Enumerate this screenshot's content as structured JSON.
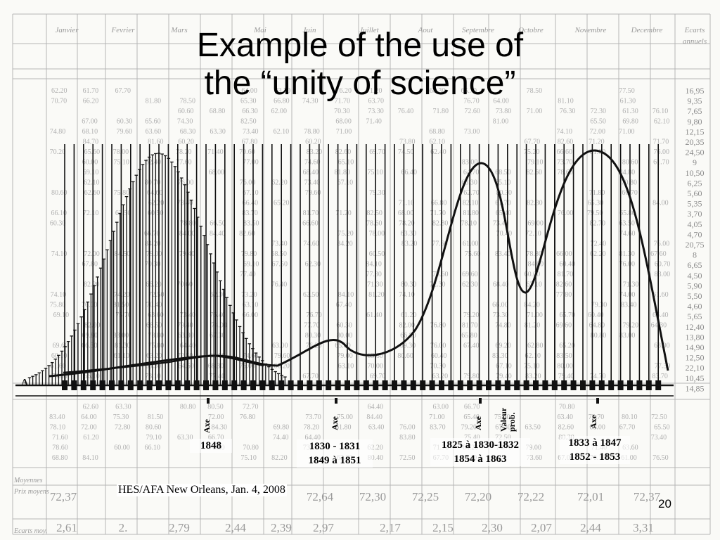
{
  "slide": {
    "title_line1": "Example of the use of",
    "title_line2": "the “unity of science”",
    "footer": "HES/AFA  New Orleans, Jan. 4, 2008",
    "page_number": "20"
  },
  "diagram": {
    "axis_start_label": "A",
    "annotations": [
      {
        "id": "a1848",
        "lines": [
          "1848"
        ],
        "axe": "Axe"
      },
      {
        "id": "a1830",
        "lines": [
          "1830  -  1831",
          "1849 à 1851"
        ],
        "axe": "Axe"
      },
      {
        "id": "a1825",
        "lines": [
          "1825 à 1830-1832",
          "1854 à  1863"
        ],
        "axe": "Axe",
        "extra": "Valeur prob."
      },
      {
        "id": "a1833",
        "lines": [
          "1833 à 1847",
          "1852 - 1853"
        ],
        "axe": "Axe"
      }
    ],
    "table_header": {
      "months": [
        "Janvier",
        "Fevrier",
        "Mars",
        "Mai",
        "Juin",
        "Juillet",
        "Aout",
        "Septembre",
        "Octobre",
        "Novembre",
        "Decembre"
      ],
      "last_col": [
        "Ecarts",
        "annuels"
      ]
    },
    "bottom_row_labels": [
      "Moyennes",
      "Prix moyens",
      "Ecarts moy."
    ],
    "bottom_values": [
      "72,37",
      "72,64",
      "72,30",
      "72,25",
      "72,20",
      "72,22",
      "72,01",
      "72,37"
    ],
    "bottom_ecarts": [
      "2,61",
      "2.",
      "2,79",
      "2,44",
      "2,39",
      "2,97",
      "2,17",
      "2,15",
      "2,30",
      "2,07",
      "2,44",
      "3,31"
    ],
    "right_values": [
      "16,95",
      "9,35",
      "7,65",
      "9,80",
      "12,15",
      "20,35",
      "24,50",
      "9",
      "10,50",
      "6,25",
      "5,60",
      "5,35",
      "3,70",
      "4,05",
      "4,70",
      "20,75",
      "8",
      "6,65",
      "4,50",
      "5,90",
      "5,50",
      "4,60",
      "5,65",
      "12,40",
      "13,80",
      "14,90",
      "12,50",
      "22,10",
      "10,45",
      "14,85"
    ]
  },
  "colors": {
    "ink": "#111111",
    "paper": "#fafaf7",
    "table_line": "#b5b5b5",
    "table_text": "#9a9a9a"
  }
}
